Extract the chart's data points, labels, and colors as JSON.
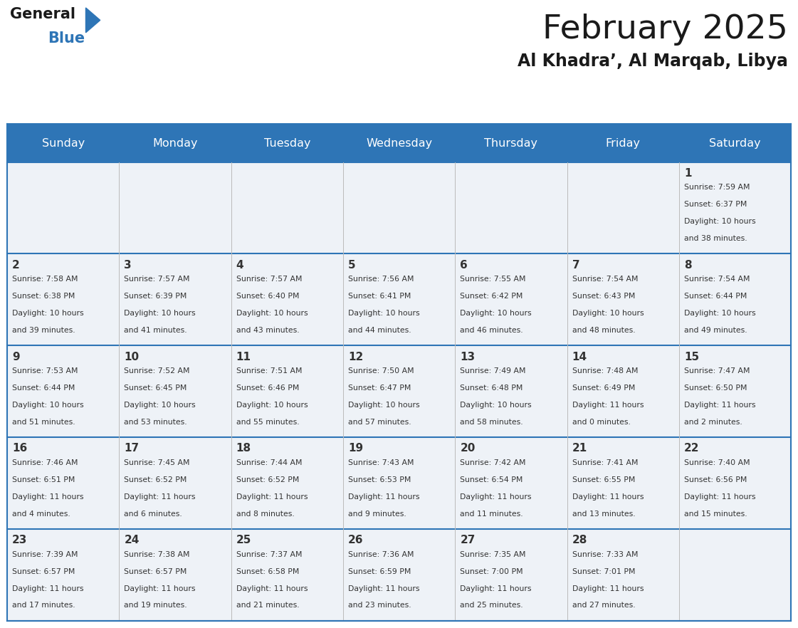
{
  "title": "February 2025",
  "subtitle": "Al Khadra’, Al Marqab, Libya",
  "header_bg_color": "#2e75b6",
  "header_text_color": "#ffffff",
  "cell_bg_color": "#eef2f7",
  "border_color": "#2e75b6",
  "text_color": "#333333",
  "day_names": [
    "Sunday",
    "Monday",
    "Tuesday",
    "Wednesday",
    "Thursday",
    "Friday",
    "Saturday"
  ],
  "weeks": [
    [
      null,
      null,
      null,
      null,
      null,
      null,
      1
    ],
    [
      2,
      3,
      4,
      5,
      6,
      7,
      8
    ],
    [
      9,
      10,
      11,
      12,
      13,
      14,
      15
    ],
    [
      16,
      17,
      18,
      19,
      20,
      21,
      22
    ],
    [
      23,
      24,
      25,
      26,
      27,
      28,
      null
    ]
  ],
  "day_data": {
    "1": {
      "sunrise": "7:59 AM",
      "sunset": "6:37 PM",
      "daylight_hrs": 10,
      "daylight_min": 38
    },
    "2": {
      "sunrise": "7:58 AM",
      "sunset": "6:38 PM",
      "daylight_hrs": 10,
      "daylight_min": 39
    },
    "3": {
      "sunrise": "7:57 AM",
      "sunset": "6:39 PM",
      "daylight_hrs": 10,
      "daylight_min": 41
    },
    "4": {
      "sunrise": "7:57 AM",
      "sunset": "6:40 PM",
      "daylight_hrs": 10,
      "daylight_min": 43
    },
    "5": {
      "sunrise": "7:56 AM",
      "sunset": "6:41 PM",
      "daylight_hrs": 10,
      "daylight_min": 44
    },
    "6": {
      "sunrise": "7:55 AM",
      "sunset": "6:42 PM",
      "daylight_hrs": 10,
      "daylight_min": 46
    },
    "7": {
      "sunrise": "7:54 AM",
      "sunset": "6:43 PM",
      "daylight_hrs": 10,
      "daylight_min": 48
    },
    "8": {
      "sunrise": "7:54 AM",
      "sunset": "6:44 PM",
      "daylight_hrs": 10,
      "daylight_min": 49
    },
    "9": {
      "sunrise": "7:53 AM",
      "sunset": "6:44 PM",
      "daylight_hrs": 10,
      "daylight_min": 51
    },
    "10": {
      "sunrise": "7:52 AM",
      "sunset": "6:45 PM",
      "daylight_hrs": 10,
      "daylight_min": 53
    },
    "11": {
      "sunrise": "7:51 AM",
      "sunset": "6:46 PM",
      "daylight_hrs": 10,
      "daylight_min": 55
    },
    "12": {
      "sunrise": "7:50 AM",
      "sunset": "6:47 PM",
      "daylight_hrs": 10,
      "daylight_min": 57
    },
    "13": {
      "sunrise": "7:49 AM",
      "sunset": "6:48 PM",
      "daylight_hrs": 10,
      "daylight_min": 58
    },
    "14": {
      "sunrise": "7:48 AM",
      "sunset": "6:49 PM",
      "daylight_hrs": 11,
      "daylight_min": 0
    },
    "15": {
      "sunrise": "7:47 AM",
      "sunset": "6:50 PM",
      "daylight_hrs": 11,
      "daylight_min": 2
    },
    "16": {
      "sunrise": "7:46 AM",
      "sunset": "6:51 PM",
      "daylight_hrs": 11,
      "daylight_min": 4
    },
    "17": {
      "sunrise": "7:45 AM",
      "sunset": "6:52 PM",
      "daylight_hrs": 11,
      "daylight_min": 6
    },
    "18": {
      "sunrise": "7:44 AM",
      "sunset": "6:52 PM",
      "daylight_hrs": 11,
      "daylight_min": 8
    },
    "19": {
      "sunrise": "7:43 AM",
      "sunset": "6:53 PM",
      "daylight_hrs": 11,
      "daylight_min": 9
    },
    "20": {
      "sunrise": "7:42 AM",
      "sunset": "6:54 PM",
      "daylight_hrs": 11,
      "daylight_min": 11
    },
    "21": {
      "sunrise": "7:41 AM",
      "sunset": "6:55 PM",
      "daylight_hrs": 11,
      "daylight_min": 13
    },
    "22": {
      "sunrise": "7:40 AM",
      "sunset": "6:56 PM",
      "daylight_hrs": 11,
      "daylight_min": 15
    },
    "23": {
      "sunrise": "7:39 AM",
      "sunset": "6:57 PM",
      "daylight_hrs": 11,
      "daylight_min": 17
    },
    "24": {
      "sunrise": "7:38 AM",
      "sunset": "6:57 PM",
      "daylight_hrs": 11,
      "daylight_min": 19
    },
    "25": {
      "sunrise": "7:37 AM",
      "sunset": "6:58 PM",
      "daylight_hrs": 11,
      "daylight_min": 21
    },
    "26": {
      "sunrise": "7:36 AM",
      "sunset": "6:59 PM",
      "daylight_hrs": 11,
      "daylight_min": 23
    },
    "27": {
      "sunrise": "7:35 AM",
      "sunset": "7:00 PM",
      "daylight_hrs": 11,
      "daylight_min": 25
    },
    "28": {
      "sunrise": "7:33 AM",
      "sunset": "7:01 PM",
      "daylight_hrs": 11,
      "daylight_min": 27
    }
  }
}
